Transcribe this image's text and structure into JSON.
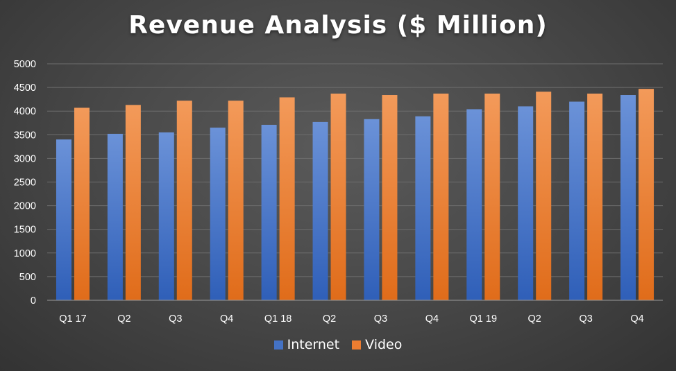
{
  "chart_data": {
    "type": "bar",
    "title": "Revenue Analysis ($ Million)",
    "xlabel": "",
    "ylabel": "",
    "categories": [
      "Q1 17",
      "Q2",
      "Q3",
      "Q4",
      "Q1 18",
      "Q2",
      "Q3",
      "Q4",
      "Q1 19",
      "Q2",
      "Q3",
      "Q4"
    ],
    "series": [
      {
        "name": "Internet",
        "color": "#4472c4",
        "values": [
          3400,
          3520,
          3550,
          3650,
          3710,
          3770,
          3830,
          3890,
          4040,
          4100,
          4200,
          4340
        ]
      },
      {
        "name": "Video",
        "color": "#ed7d31",
        "values": [
          4070,
          4130,
          4220,
          4220,
          4290,
          4370,
          4340,
          4370,
          4370,
          4410,
          4370,
          4470
        ]
      }
    ],
    "ylim": [
      0,
      5000
    ],
    "yticks": [
      0,
      500,
      1000,
      1500,
      2000,
      2500,
      3000,
      3500,
      4000,
      4500,
      5000
    ],
    "grid": true,
    "legend_position": "bottom"
  }
}
